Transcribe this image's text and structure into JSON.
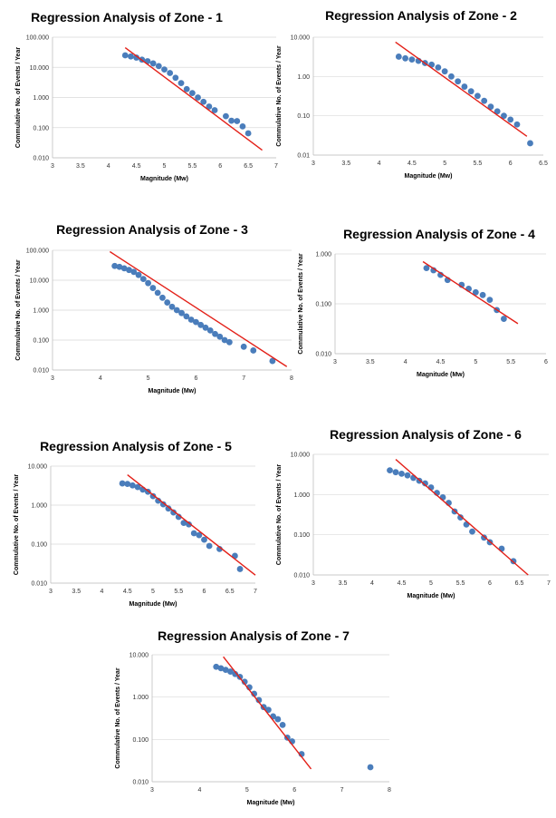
{
  "figure": {
    "xlabel": "Magnitude (Mw)",
    "ylabel": "Commulative No. of Events / Year",
    "point_color": "#4a7dbb",
    "line_color": "#e32018"
  },
  "chart_data": [
    {
      "type": "scatter",
      "title": "Regression Analysis of Zone - 1",
      "xlabel": "Magnitude (Mw)",
      "ylabel": "Commulative No. of Events / Year",
      "yscale": "log",
      "xlim": [
        3,
        7
      ],
      "ylim": [
        0.01,
        100
      ],
      "x_ticks": [
        "3",
        "3.5",
        "4",
        "4.5",
        "5",
        "5.5",
        "6",
        "6.5",
        "7"
      ],
      "y_ticks": [
        "0.010",
        "0.100",
        "1.000",
        "10.000",
        "100.000"
      ],
      "x": [
        4.3,
        4.4,
        4.5,
        4.6,
        4.7,
        4.8,
        4.9,
        5.0,
        5.1,
        5.2,
        5.3,
        5.4,
        5.5,
        5.6,
        5.7,
        5.8,
        5.9,
        6.1,
        6.2,
        6.3,
        6.4,
        6.5
      ],
      "y": [
        25,
        23,
        21,
        18,
        16,
        13.5,
        11,
        8.5,
        6.5,
        4.5,
        3.0,
        1.9,
        1.4,
        1.0,
        0.72,
        0.5,
        0.38,
        0.24,
        0.17,
        0.165,
        0.11,
        0.065
      ],
      "regression_line": {
        "x": [
          4.3,
          6.75
        ],
        "y": [
          45,
          0.018
        ]
      }
    },
    {
      "type": "scatter",
      "title": "Regression Analysis of Zone - 2",
      "xlabel": "Magnitude (Mw)",
      "ylabel": "Commulative No. of Events / Year",
      "yscale": "log",
      "xlim": [
        3,
        6.5
      ],
      "ylim": [
        0.01,
        10
      ],
      "x_ticks": [
        "3",
        "3.5",
        "4",
        "4.5",
        "5",
        "5.5",
        "6",
        "6.5"
      ],
      "y_ticks": [
        "0.01",
        "0.10",
        "1.00",
        "10.000"
      ],
      "x": [
        4.3,
        4.4,
        4.5,
        4.6,
        4.7,
        4.8,
        4.9,
        5.0,
        5.1,
        5.2,
        5.3,
        5.4,
        5.5,
        5.6,
        5.7,
        5.8,
        5.9,
        6.0,
        6.1,
        6.3
      ],
      "y": [
        3.2,
        2.9,
        2.7,
        2.5,
        2.2,
        2.0,
        1.7,
        1.35,
        1.0,
        0.75,
        0.55,
        0.42,
        0.32,
        0.24,
        0.17,
        0.13,
        0.1,
        0.08,
        0.06,
        0.02
      ],
      "regression_line": {
        "x": [
          4.25,
          6.25
        ],
        "y": [
          7.5,
          0.03
        ]
      }
    },
    {
      "type": "scatter",
      "title": "Regression Analysis of Zone - 3",
      "xlabel": "Magnitude (Mw)",
      "ylabel": "Commulative No. of Events / Year",
      "yscale": "log",
      "xlim": [
        3,
        8
      ],
      "ylim": [
        0.01,
        100
      ],
      "x_ticks": [
        "3",
        "4",
        "5",
        "6",
        "7",
        "8"
      ],
      "y_ticks": [
        "0.010",
        "0.100",
        "1.000",
        "10.000",
        "100.000"
      ],
      "x": [
        4.3,
        4.4,
        4.5,
        4.6,
        4.7,
        4.8,
        4.9,
        5.0,
        5.1,
        5.2,
        5.3,
        5.4,
        5.5,
        5.6,
        5.7,
        5.8,
        5.9,
        6.0,
        6.1,
        6.2,
        6.3,
        6.4,
        6.5,
        6.6,
        6.7,
        7.0,
        7.2,
        7.6
      ],
      "y": [
        30,
        28,
        25,
        22,
        19,
        15,
        11,
        8,
        5.5,
        3.8,
        2.6,
        1.8,
        1.3,
        1.0,
        0.8,
        0.62,
        0.48,
        0.4,
        0.32,
        0.26,
        0.21,
        0.16,
        0.13,
        0.1,
        0.085,
        0.06,
        0.045,
        0.02
      ],
      "regression_line": {
        "x": [
          4.2,
          7.9
        ],
        "y": [
          90,
          0.013
        ]
      }
    },
    {
      "type": "scatter",
      "title": "Regression Analysis of Zone - 4",
      "xlabel": "Magnitude (Mw)",
      "ylabel": "Commulative No. of Events / Year",
      "yscale": "log",
      "xlim": [
        3,
        6
      ],
      "ylim": [
        0.01,
        1
      ],
      "x_ticks": [
        "3",
        "3.5",
        "4",
        "4.5",
        "5",
        "5.5",
        "6"
      ],
      "y_ticks": [
        "0.010",
        "0.100",
        "1.000"
      ],
      "x": [
        4.3,
        4.4,
        4.5,
        4.6,
        4.8,
        4.9,
        5.0,
        5.1,
        5.2,
        5.3,
        5.4
      ],
      "y": [
        0.52,
        0.47,
        0.38,
        0.3,
        0.24,
        0.2,
        0.17,
        0.15,
        0.12,
        0.075,
        0.05
      ],
      "regression_line": {
        "x": [
          4.25,
          5.6
        ],
        "y": [
          0.7,
          0.04
        ]
      }
    },
    {
      "type": "scatter",
      "title": "Regression Analysis of Zone - 5",
      "xlabel": "Magnitude (Mw)",
      "ylabel": "Commulative No. of Events / Year",
      "yscale": "log",
      "xlim": [
        3,
        7
      ],
      "ylim": [
        0.01,
        10
      ],
      "x_ticks": [
        "3",
        "3.5",
        "4",
        "4.5",
        "5",
        "5.5",
        "6",
        "6.5",
        "7"
      ],
      "y_ticks": [
        "0.010",
        "0.100",
        "1.000",
        "10.000"
      ],
      "x": [
        4.4,
        4.5,
        4.6,
        4.7,
        4.8,
        4.9,
        5.0,
        5.1,
        5.2,
        5.3,
        5.4,
        5.5,
        5.6,
        5.7,
        5.8,
        5.9,
        6.0,
        6.1,
        6.3,
        6.6,
        6.7
      ],
      "y": [
        3.6,
        3.5,
        3.2,
        2.9,
        2.5,
        2.2,
        1.7,
        1.3,
        1.05,
        0.82,
        0.65,
        0.5,
        0.35,
        0.32,
        0.19,
        0.17,
        0.13,
        0.09,
        0.075,
        0.05,
        0.023
      ],
      "regression_line": {
        "x": [
          4.5,
          7.0
        ],
        "y": [
          6,
          0.016
        ]
      }
    },
    {
      "type": "scatter",
      "title": "Regression Analysis of Zone - 6",
      "xlabel": "Magnitude (Mw)",
      "ylabel": "Commulative No. of Events / Year",
      "yscale": "log",
      "xlim": [
        3,
        7
      ],
      "ylim": [
        0.01,
        10
      ],
      "x_ticks": [
        "3",
        "3.5",
        "4",
        "4.5",
        "5",
        "5.5",
        "6",
        "6.5",
        "7"
      ],
      "y_ticks": [
        "0.010",
        "0.100",
        "1.000",
        "10.000"
      ],
      "x": [
        4.3,
        4.4,
        4.5,
        4.6,
        4.7,
        4.8,
        4.9,
        5.0,
        5.1,
        5.2,
        5.3,
        5.4,
        5.5,
        5.6,
        5.7,
        5.9,
        6.0,
        6.2,
        6.4
      ],
      "y": [
        4.0,
        3.6,
        3.3,
        3.0,
        2.6,
        2.2,
        1.9,
        1.5,
        1.1,
        0.85,
        0.62,
        0.38,
        0.27,
        0.18,
        0.12,
        0.085,
        0.065,
        0.045,
        0.022
      ],
      "regression_line": {
        "x": [
          4.4,
          6.65
        ],
        "y": [
          7.5,
          0.01
        ]
      }
    },
    {
      "type": "scatter",
      "title": "Regression Analysis of Zone - 7",
      "xlabel": "Magnitude (Mw)",
      "ylabel": "Commulative No. of Events / Year",
      "yscale": "log",
      "xlim": [
        3,
        8
      ],
      "ylim": [
        0.01,
        10
      ],
      "x_ticks": [
        "3",
        "4",
        "5",
        "6",
        "7",
        "8"
      ],
      "y_ticks": [
        "0.010",
        "0.100",
        "1.000",
        "10.000"
      ],
      "x": [
        4.35,
        4.45,
        4.55,
        4.65,
        4.75,
        4.85,
        4.95,
        5.05,
        5.15,
        5.25,
        5.35,
        5.45,
        5.55,
        5.65,
        5.75,
        5.85,
        5.95,
        6.15,
        7.6
      ],
      "y": [
        5.2,
        4.8,
        4.4,
        4.0,
        3.5,
        3.0,
        2.3,
        1.7,
        1.2,
        0.85,
        0.58,
        0.5,
        0.35,
        0.3,
        0.22,
        0.11,
        0.09,
        0.045,
        0.022
      ],
      "regression_line": {
        "x": [
          4.5,
          6.35
        ],
        "y": [
          9.0,
          0.02
        ]
      }
    }
  ]
}
